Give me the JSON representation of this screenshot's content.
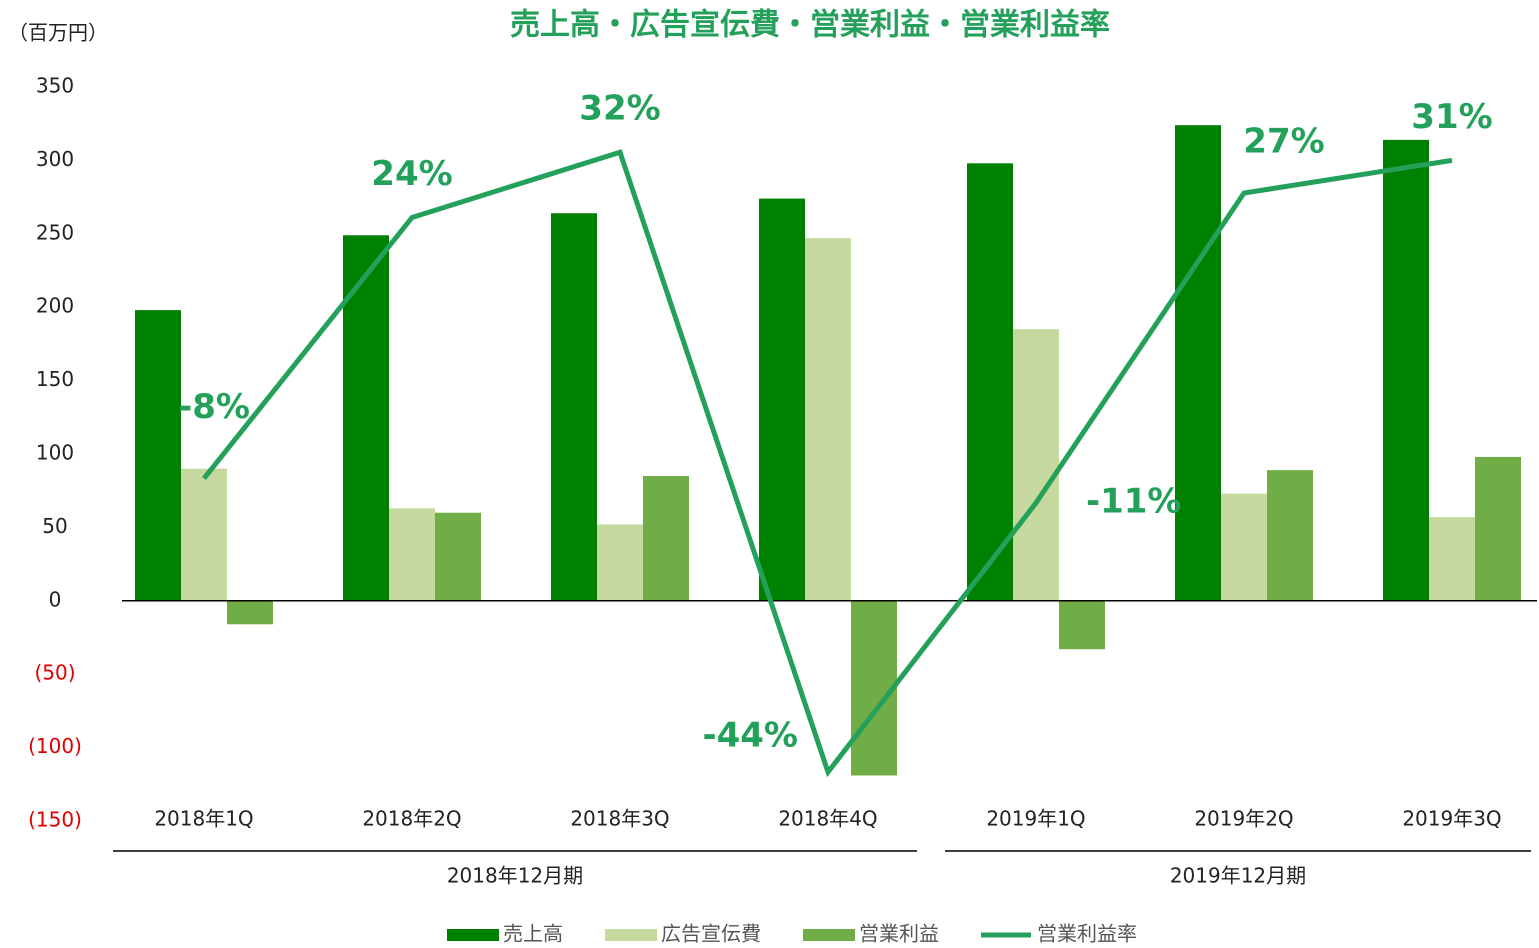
{
  "chart_data": {
    "type": "bar",
    "title": "売上高・広告宣伝費・営業利益・営業利益率",
    "unit_label": "（百万円）",
    "categories": [
      "2018年1Q",
      "2018年2Q",
      "2018年3Q",
      "2018年4Q",
      "2019年1Q",
      "2019年2Q",
      "2019年3Q"
    ],
    "groups": [
      {
        "label": "2018年12月期",
        "span": 4
      },
      {
        "label": "2019年12月期",
        "span": 3
      }
    ],
    "series": [
      {
        "name": "売上高",
        "type": "bar",
        "color": "#008000",
        "values": [
          198,
          249,
          264,
          274,
          298,
          324,
          314
        ]
      },
      {
        "name": "広告宣伝費",
        "type": "bar",
        "color": "#c5d89e",
        "values": [
          90,
          63,
          52,
          247,
          185,
          73,
          57
        ]
      },
      {
        "name": "営業利益",
        "type": "bar",
        "color": "#70ad47",
        "values": [
          -16,
          60,
          85,
          -119,
          -33,
          89,
          98
        ]
      },
      {
        "name": "営業利益率",
        "type": "line",
        "axis": "y2",
        "color": "#23a05a",
        "values": [
          -8,
          24,
          32,
          -44,
          -11,
          27,
          31
        ],
        "value_labels": [
          "-8%",
          "24%",
          "32%",
          "-44%",
          "-11%",
          "27%",
          "31%"
        ]
      }
    ],
    "ylim": [
      -150,
      350
    ],
    "yticks": [
      {
        "value": -150,
        "label": "(150)"
      },
      {
        "value": -100,
        "label": "(100)"
      },
      {
        "value": -50,
        "label": "(50)"
      },
      0,
      50,
      100,
      150,
      200,
      250,
      300,
      350
    ],
    "negative_tick_color": "#e00000",
    "y2lim": [
      -50,
      40
    ],
    "legend": "bottom"
  }
}
